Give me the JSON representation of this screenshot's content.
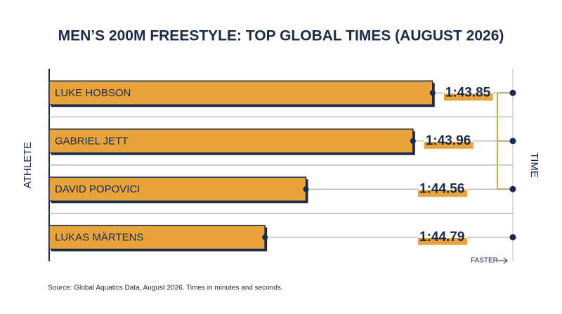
{
  "chart_data": {
    "type": "bar",
    "orientation": "horizontal",
    "title": "MEN’S 200M FREESTYLE: TOP GLOBAL TIMES (AUGUST 2026)",
    "y_label": "ATHLETE",
    "x_label": "TIME",
    "categories": [
      "LUKE HOBSON",
      "GABRIEL JETT",
      "DAVID POPOVICI",
      "LUKAS MÄRTENS"
    ],
    "values": [
      103.85,
      103.96,
      104.56,
      104.79
    ],
    "value_labels": [
      "1:43.85",
      "1:43.96",
      "1:44.56",
      "1:44.79"
    ],
    "color": "#e8a33a",
    "xlim": [
      106,
      103.4
    ],
    "annotation": "FASTER",
    "source": "Source: Global Aquatics Data, August 2026. Times in minutes and seconds."
  }
}
